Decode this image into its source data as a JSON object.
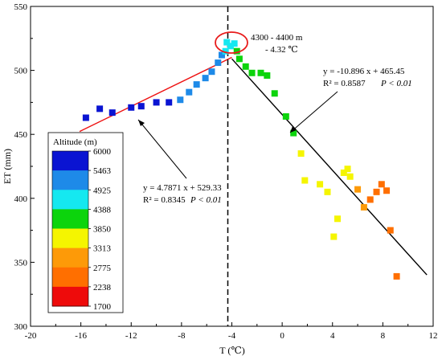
{
  "chart_data": {
    "type": "scatter",
    "title": "",
    "xlabel": "T (℃)",
    "ylabel": "ET (mm)",
    "xlim": [
      -20,
      12
    ],
    "ylim": [
      300,
      550
    ],
    "xticks": [
      "-20",
      "-16",
      "-12",
      "-8",
      "-4",
      "0",
      "4",
      "8",
      "12"
    ],
    "yticks": [
      "300",
      "350",
      "400",
      "450",
      "500",
      "550"
    ],
    "grid": false,
    "legend": {
      "title": "Altitude (m)",
      "position": "left",
      "levels": [
        "6000",
        "5463",
        "4925",
        "4388",
        "3850",
        "3313",
        "2775",
        "2238",
        "1700"
      ],
      "colors": [
        "#0a14d2",
        "#1e8ae8",
        "#15e8f0",
        "#0cd40c",
        "#1bd41b",
        "#f5f500",
        "#fd9a08",
        "#ff6f00",
        "#ee0b0b"
      ]
    },
    "points": [
      {
        "x": -15.6,
        "y": 463,
        "alt": 5900
      },
      {
        "x": -14.5,
        "y": 470,
        "alt": 5850
      },
      {
        "x": -13.5,
        "y": 467,
        "alt": 5800
      },
      {
        "x": -12.0,
        "y": 471,
        "alt": 5750
      },
      {
        "x": -11.2,
        "y": 472,
        "alt": 5700
      },
      {
        "x": -10.0,
        "y": 475,
        "alt": 5650
      },
      {
        "x": -9.0,
        "y": 475,
        "alt": 5500
      },
      {
        "x": -8.1,
        "y": 477,
        "alt": 5450
      },
      {
        "x": -7.4,
        "y": 483,
        "alt": 5400
      },
      {
        "x": -6.8,
        "y": 489,
        "alt": 5300
      },
      {
        "x": -6.1,
        "y": 494,
        "alt": 5250
      },
      {
        "x": -5.6,
        "y": 499,
        "alt": 5100
      },
      {
        "x": -5.1,
        "y": 506,
        "alt": 5000
      },
      {
        "x": -4.8,
        "y": 512,
        "alt": 4950
      },
      {
        "x": -4.5,
        "y": 515,
        "alt": 4900
      },
      {
        "x": -4.1,
        "y": 519,
        "alt": 4880
      },
      {
        "x": -4.4,
        "y": 522,
        "alt": 4850
      },
      {
        "x": -3.8,
        "y": 521,
        "alt": 4500
      },
      {
        "x": -3.6,
        "y": 515,
        "alt": 4350
      },
      {
        "x": -3.4,
        "y": 509,
        "alt": 4300
      },
      {
        "x": -2.9,
        "y": 503,
        "alt": 4250
      },
      {
        "x": -2.4,
        "y": 498,
        "alt": 4200
      },
      {
        "x": -1.7,
        "y": 498,
        "alt": 4150
      },
      {
        "x": -1.2,
        "y": 496,
        "alt": 4100
      },
      {
        "x": -0.6,
        "y": 482,
        "alt": 4050
      },
      {
        "x": 0.3,
        "y": 464,
        "alt": 4000
      },
      {
        "x": 0.9,
        "y": 451,
        "alt": 3950
      },
      {
        "x": 1.5,
        "y": 435,
        "alt": 3300
      },
      {
        "x": 1.8,
        "y": 414,
        "alt": 3280
      },
      {
        "x": 3.0,
        "y": 411,
        "alt": 3250
      },
      {
        "x": 3.6,
        "y": 405,
        "alt": 3230
      },
      {
        "x": 4.1,
        "y": 370,
        "alt": 3210
      },
      {
        "x": 4.4,
        "y": 384,
        "alt": 3200
      },
      {
        "x": 4.9,
        "y": 420,
        "alt": 2900
      },
      {
        "x": 5.2,
        "y": 423,
        "alt": 2850
      },
      {
        "x": 5.4,
        "y": 417,
        "alt": 2800
      },
      {
        "x": 6.0,
        "y": 407,
        "alt": 2750
      },
      {
        "x": 6.5,
        "y": 393,
        "alt": 2500
      },
      {
        "x": 7.0,
        "y": 399,
        "alt": 2000
      },
      {
        "x": 7.5,
        "y": 405,
        "alt": 1800
      },
      {
        "x": 7.9,
        "y": 411,
        "alt": 1780
      },
      {
        "x": 8.3,
        "y": 406,
        "alt": 1760
      },
      {
        "x": 8.6,
        "y": 375,
        "alt": 1740
      },
      {
        "x": 9.1,
        "y": 339,
        "alt": 1720
      }
    ],
    "fits": [
      {
        "color": "#ee1111",
        "x": [
          -16,
          -4
        ],
        "slope": 4.7871,
        "intercept": 529.33,
        "x0": -16.1,
        "x1": -4.0
      },
      {
        "color": "#000000",
        "x": [
          -4,
          12
        ],
        "slope": -10.896,
        "intercept": 465.45,
        "x0": -4.0,
        "x1": 11.5
      }
    ],
    "vline_x": -4.32,
    "annotations": {
      "peak": {
        "range": "4300 - 4400 m",
        "temp": "- 4.32 ℃"
      },
      "fit_right": {
        "eq": "y = -10.896 x + 465.45",
        "r2": "R² = 0.8587",
        "p": "P < 0.01"
      },
      "fit_left": {
        "eq": "y = 4.7871 x + 529.33",
        "r2": "R² = 0.8345",
        "p": "P < 0.01"
      }
    }
  }
}
